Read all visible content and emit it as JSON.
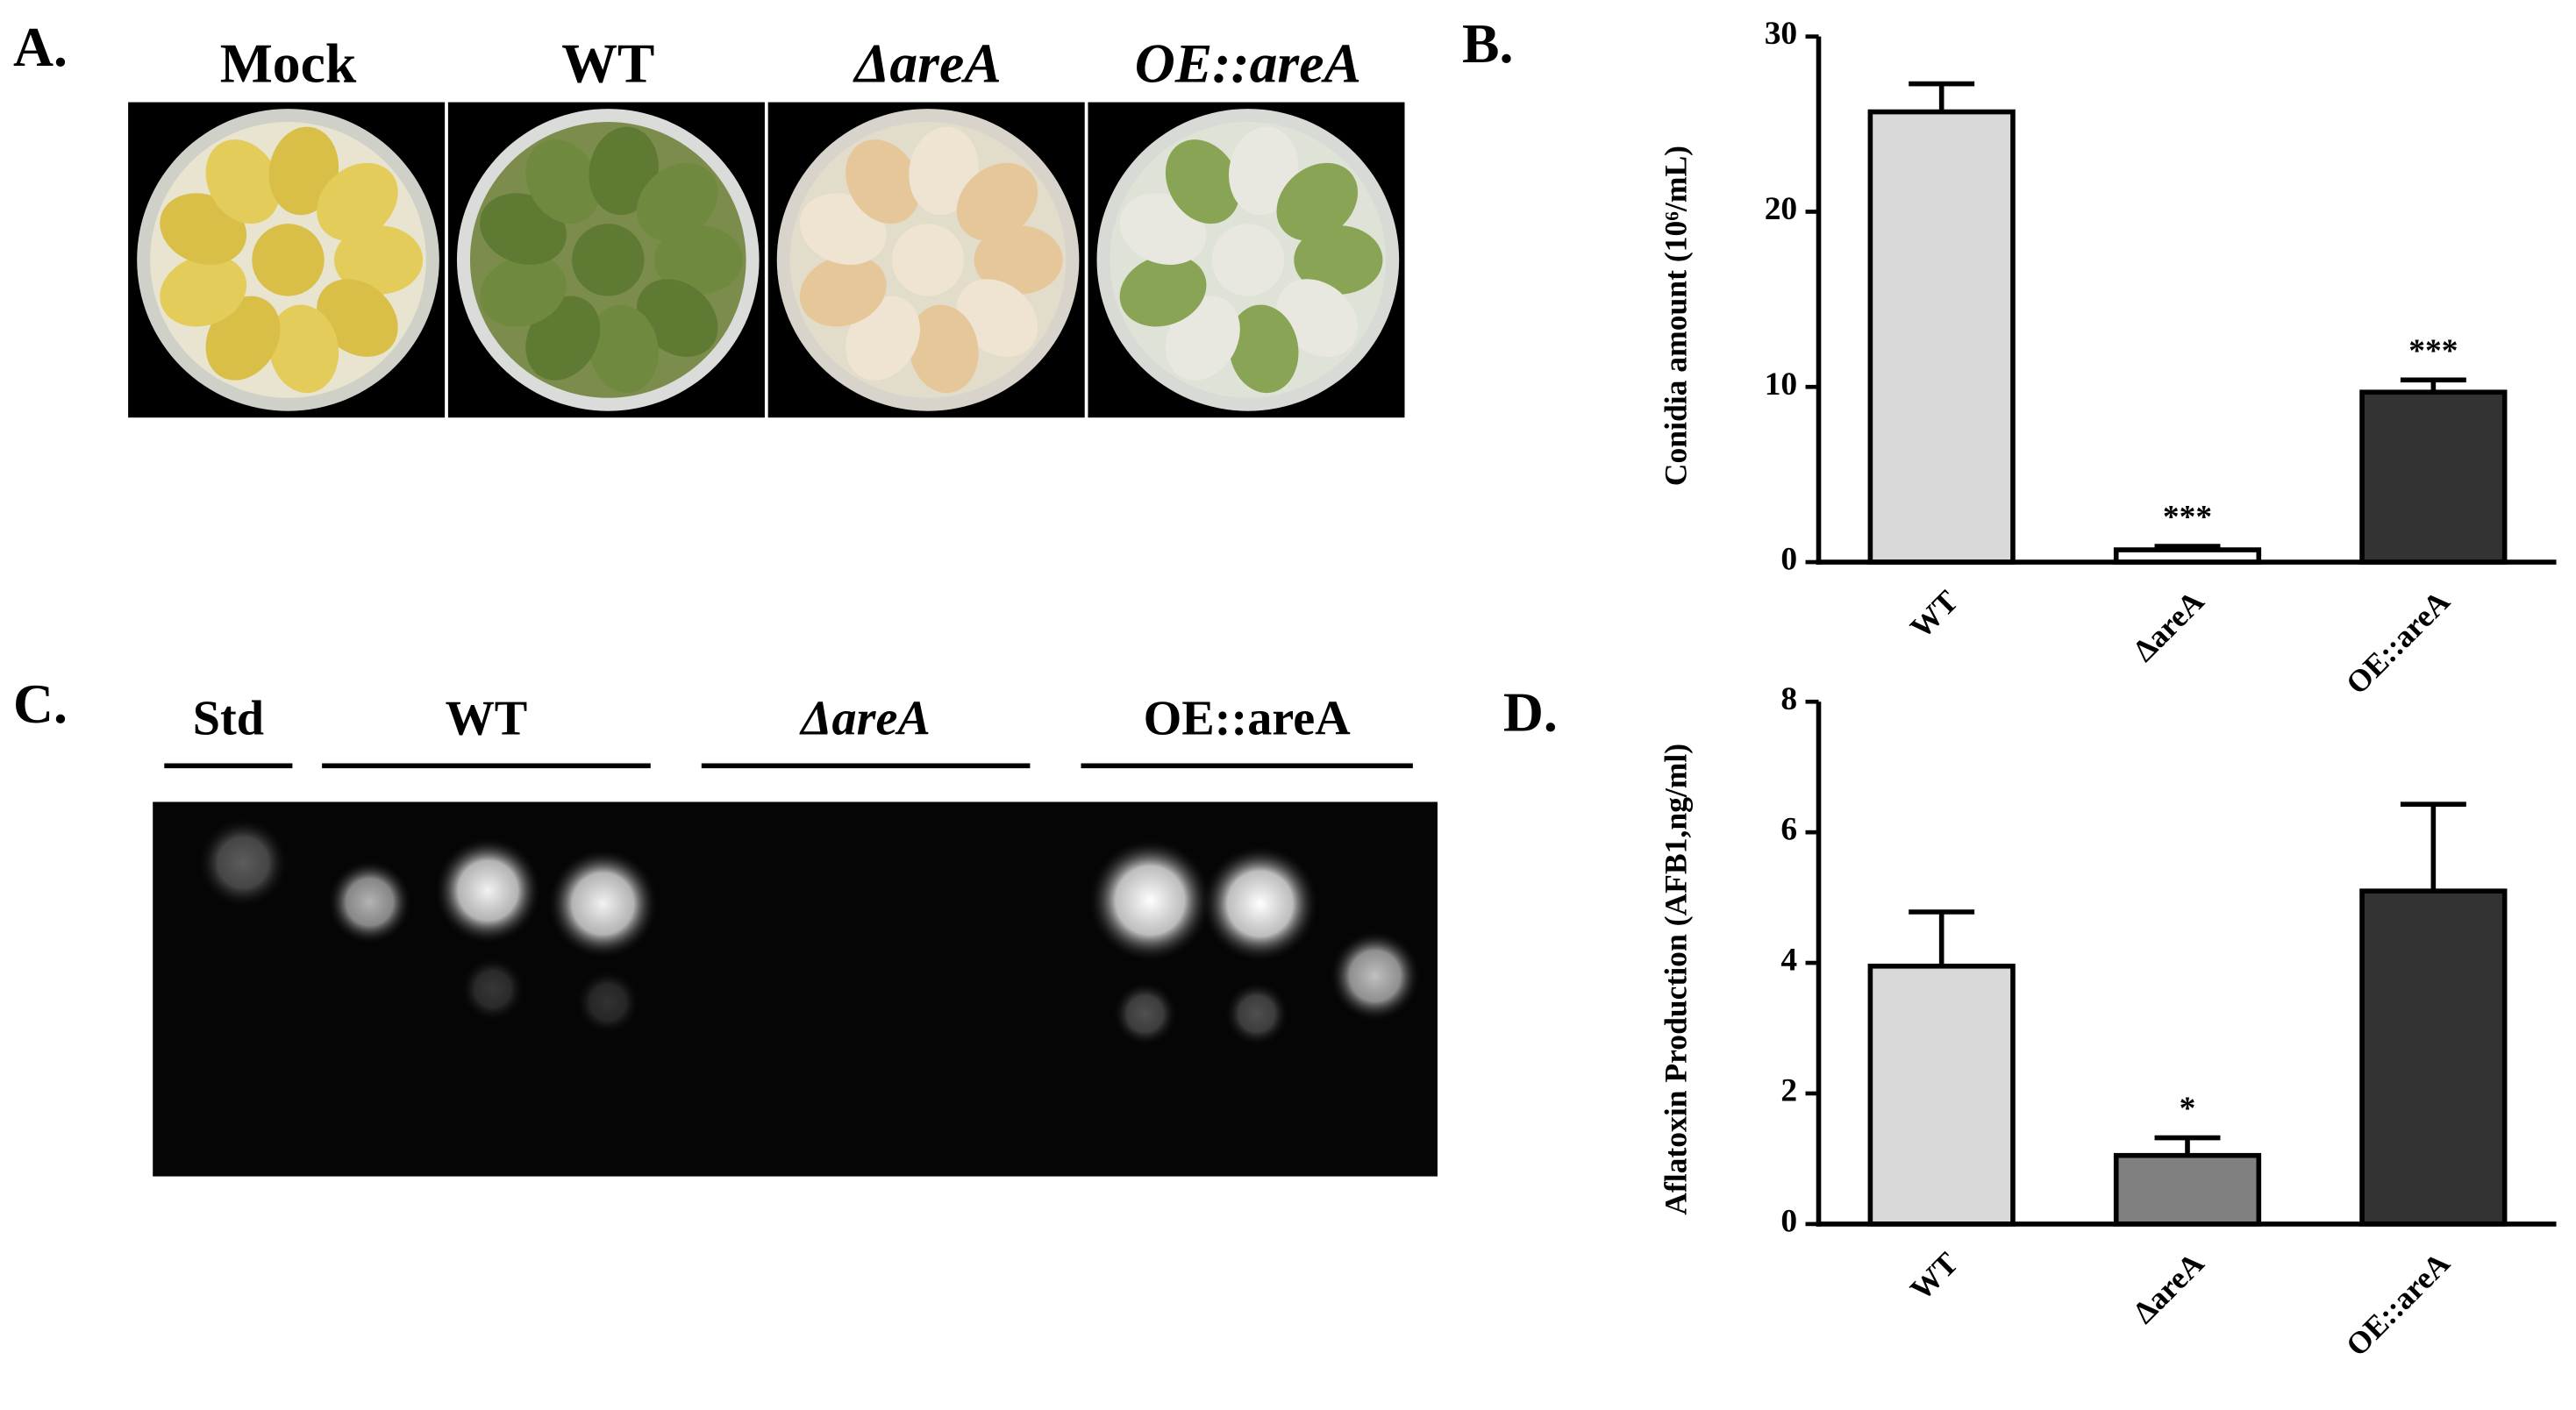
{
  "panel_labels": [
    "A.",
    "B.",
    "C.",
    "D."
  ],
  "plates": {
    "labels": [
      "Mock",
      "WT",
      "ΔareA",
      "OE::areA"
    ]
  },
  "gel": {
    "lanes": [
      "Std",
      "WT",
      "ΔareA",
      "OE::areA"
    ]
  },
  "chart_data": [
    {
      "type": "bar",
      "ylabel": "Conidia amount (10⁶/mL)",
      "categories": [
        "WT",
        "ΔareA",
        "OE::areA"
      ],
      "values": [
        25.7,
        0.7,
        9.7
      ],
      "errors": [
        1.6,
        0.2,
        0.7
      ],
      "colors": [
        "#d9d9d9",
        "#ffffff",
        "#333333"
      ],
      "annotations": [
        {
          "category": "ΔareA",
          "text": "***"
        },
        {
          "category": "OE::areA",
          "text": "***"
        }
      ],
      "ylim": [
        0,
        30
      ],
      "yticks": [
        0,
        10,
        20,
        30
      ]
    },
    {
      "type": "bar",
      "ylabel": "Aflatoxin Production (AFB1,ng/ml)",
      "categories": [
        "WT",
        "ΔareA",
        "OE::areA"
      ],
      "values": [
        3.95,
        1.05,
        5.1
      ],
      "errors": [
        0.83,
        0.27,
        1.33
      ],
      "colors": [
        "#d9d9d9",
        "#808080",
        "#333333"
      ],
      "annotations": [
        {
          "category": "ΔareA",
          "text": "*"
        }
      ],
      "ylim": [
        0,
        8
      ],
      "yticks": [
        0,
        2,
        4,
        6,
        8
      ]
    }
  ]
}
